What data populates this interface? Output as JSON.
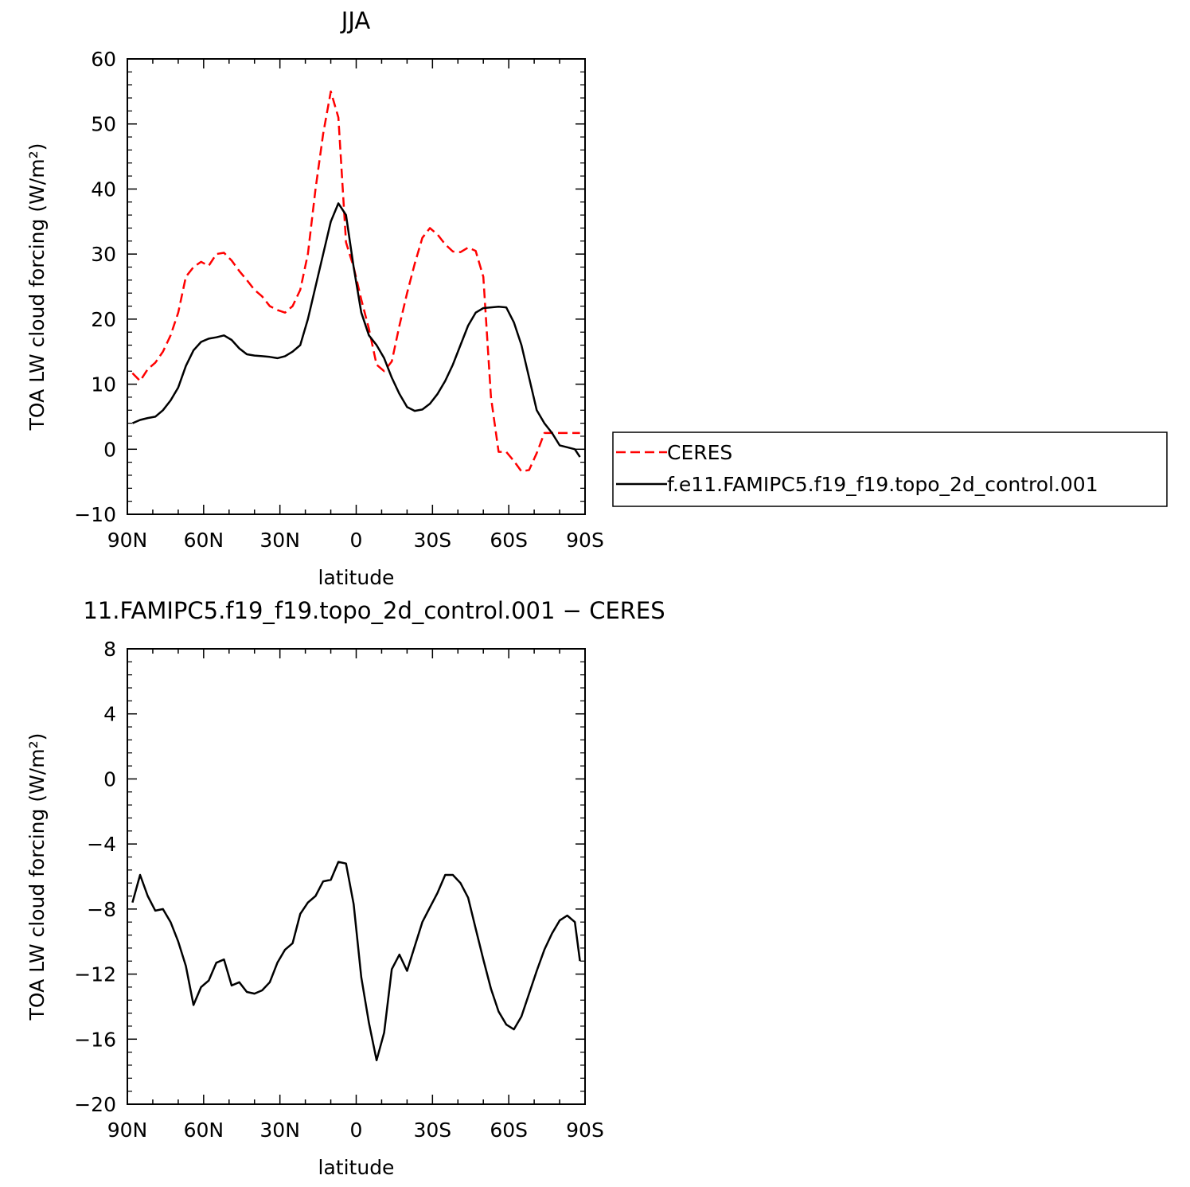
{
  "chart_data": [
    {
      "type": "line",
      "title": "JJA",
      "xlabel": "latitude",
      "ylabel": "TOA LW cloud forcing (W/m²)",
      "xlim": [
        90,
        -90
      ],
      "ylim": [
        -10,
        60
      ],
      "x_ticks": [
        90,
        60,
        30,
        0,
        -30,
        -60,
        -90
      ],
      "x_tick_labels": [
        "90N",
        "60N",
        "30N",
        "0",
        "30S",
        "60S",
        "90S"
      ],
      "y_ticks": [
        -10,
        0,
        10,
        20,
        30,
        40,
        50,
        60
      ],
      "y_tick_labels": [
        "−10",
        "0",
        "10",
        "20",
        "30",
        "40",
        "50",
        "60"
      ],
      "legend_position": "right",
      "grid": false,
      "series": [
        {
          "name": "CERES",
          "color": "#ff0000",
          "dash": "dashed",
          "x": [
            88,
            85,
            82,
            79,
            76,
            73,
            70,
            67,
            64,
            61,
            58,
            55,
            52,
            49,
            46,
            43,
            40,
            37,
            34,
            31,
            28,
            25,
            22,
            19,
            16,
            13,
            10,
            7,
            4,
            1,
            -2,
            -5,
            -8,
            -11,
            -14,
            -17,
            -20,
            -23,
            -26,
            -29,
            -32,
            -35,
            -38,
            -41,
            -44,
            -47,
            -50,
            -53,
            -56,
            -59,
            -62,
            -65,
            -68,
            -71,
            -74,
            -77,
            -80,
            -83,
            -86,
            -88
          ],
          "y": [
            11.7,
            10.5,
            12.3,
            13.3,
            15.0,
            17.5,
            21.0,
            26.5,
            28.0,
            28.8,
            28.2,
            30.0,
            30.2,
            29.0,
            27.4,
            26.0,
            24.5,
            23.5,
            22.0,
            21.4,
            21.0,
            22.0,
            24.5,
            30.0,
            40.0,
            48.5,
            55.0,
            51.0,
            31.8,
            28.0,
            23.0,
            18.5,
            13.0,
            12.0,
            13.5,
            19.0,
            24.0,
            28.5,
            32.5,
            34.0,
            33.0,
            31.5,
            30.4,
            30.3,
            31.0,
            30.5,
            26.5,
            8.0,
            -0.4,
            -0.4,
            -1.8,
            -3.4,
            -3.2,
            -0.6,
            2.5,
            2.5,
            2.5,
            2.5,
            2.5,
            2.5
          ]
        },
        {
          "name": "f.e11.FAMIPC5.f19_f19.topo_2d_control.001",
          "color": "#000000",
          "dash": "solid",
          "x": [
            88,
            85,
            82,
            79,
            76,
            73,
            70,
            67,
            64,
            61,
            58,
            55,
            52,
            49,
            46,
            43,
            40,
            37,
            34,
            31,
            28,
            25,
            22,
            19,
            16,
            13,
            10,
            7,
            4,
            1,
            -2,
            -5,
            -8,
            -11,
            -14,
            -17,
            -20,
            -23,
            -26,
            -29,
            -32,
            -35,
            -38,
            -41,
            -44,
            -47,
            -50,
            -53,
            -56,
            -59,
            -62,
            -65,
            -68,
            -71,
            -74,
            -77,
            -80,
            -83,
            -86,
            -88
          ],
          "y": [
            4.0,
            4.5,
            4.8,
            5.0,
            6.0,
            7.5,
            9.5,
            12.8,
            15.2,
            16.5,
            17.0,
            17.2,
            17.5,
            16.8,
            15.5,
            14.6,
            14.4,
            14.3,
            14.2,
            14.0,
            14.3,
            15.0,
            16.0,
            20.0,
            25.0,
            30.0,
            35.0,
            37.8,
            36.0,
            28.0,
            21.0,
            17.5,
            16.0,
            14.0,
            11.0,
            8.5,
            6.5,
            5.9,
            6.1,
            7.0,
            8.5,
            10.5,
            13.0,
            16.0,
            19.0,
            21.0,
            21.7,
            21.8,
            21.9,
            21.8,
            19.5,
            16.0,
            11.0,
            6.0,
            4.0,
            2.5,
            0.6,
            0.3,
            0.0,
            -1.2
          ]
        }
      ]
    },
    {
      "type": "line",
      "title": "11.FAMIPC5.f19_f19.topo_2d_control.001 − CERES",
      "xlabel": "latitude",
      "ylabel": "TOA LW cloud forcing (W/m²)",
      "xlim": [
        90,
        -90
      ],
      "ylim": [
        -20,
        8
      ],
      "x_ticks": [
        90,
        60,
        30,
        0,
        -30,
        -60,
        -90
      ],
      "x_tick_labels": [
        "90N",
        "60N",
        "30N",
        "0",
        "30S",
        "60S",
        "90S"
      ],
      "y_ticks": [
        -20,
        -16,
        -12,
        -8,
        -4,
        0,
        4,
        8
      ],
      "y_tick_labels": [
        "−20",
        "−16",
        "−12",
        "−8",
        "−4",
        "0",
        "4",
        "8"
      ],
      "grid": false,
      "series": [
        {
          "color": "#000000",
          "dash": "solid",
          "x": [
            88,
            85,
            82,
            79,
            76,
            73,
            70,
            67,
            64,
            61,
            58,
            55,
            52,
            49,
            46,
            43,
            40,
            37,
            34,
            31,
            28,
            25,
            22,
            19,
            16,
            13,
            10,
            7,
            4,
            1,
            -2,
            -5,
            -8,
            -11,
            -14,
            -17,
            -20,
            -23,
            -26,
            -29,
            -32,
            -35,
            -38,
            -41,
            -44,
            -47,
            -50,
            -53,
            -56,
            -59,
            -62,
            -65,
            -68,
            -71,
            -74,
            -77,
            -80,
            -83,
            -86,
            -88
          ],
          "y": [
            -7.6,
            -5.9,
            -7.2,
            -8.1,
            -8.0,
            -8.8,
            -10.0,
            -11.5,
            -13.9,
            -12.8,
            -12.4,
            -11.3,
            -11.1,
            -12.7,
            -12.5,
            -13.1,
            -13.2,
            -13.0,
            -12.5,
            -11.3,
            -10.5,
            -10.1,
            -8.3,
            -7.6,
            -7.2,
            -6.3,
            -6.2,
            -5.1,
            -5.2,
            -7.7,
            -12.2,
            -15.0,
            -17.3,
            -15.6,
            -11.7,
            -10.8,
            -11.8,
            -10.3,
            -8.8,
            -7.9,
            -7.0,
            -5.9,
            -5.9,
            -6.4,
            -7.3,
            -9.2,
            -11.1,
            -12.9,
            -14.3,
            -15.1,
            -15.4,
            -14.6,
            -13.2,
            -11.8,
            -10.5,
            -9.5,
            -8.7,
            -8.4,
            -8.8,
            -11.2
          ]
        }
      ]
    }
  ],
  "legend": {
    "items": [
      {
        "label": "CERES",
        "color": "#ff0000",
        "dash": "dashed"
      },
      {
        "label": "f.e11.FAMIPC5.f19_f19.topo_2d_control.001",
        "color": "#000000",
        "dash": "solid"
      }
    ]
  }
}
